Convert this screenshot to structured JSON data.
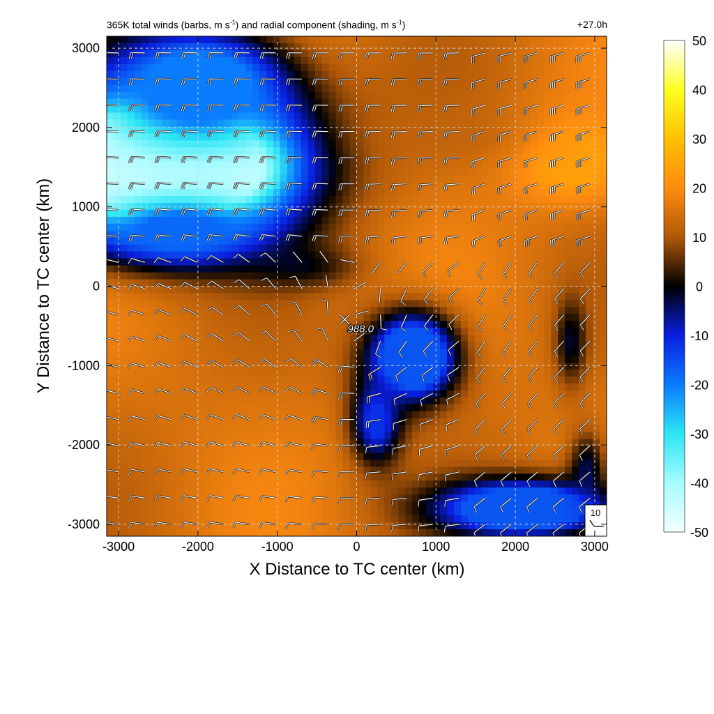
{
  "figure": {
    "title_part1": "365K total winds (barbs, m s",
    "title_sup1": "-1",
    "title_part2": ") and radial component (shading, m s",
    "title_sup2": "-1",
    "title_part3": ")",
    "time_label": "+27.0h"
  },
  "chart_data": {
    "type": "heatmap",
    "xlabel": "X Distance to TC center (km)",
    "ylabel": "Y Distance to TC center (km)",
    "xlim": [
      -3150,
      3150
    ],
    "ylim": [
      -3150,
      3150
    ],
    "xticks": [
      -3000,
      -2000,
      -1000,
      0,
      1000,
      2000,
      3000
    ],
    "yticks": [
      -3000,
      -2000,
      -1000,
      0,
      1000,
      2000,
      3000
    ],
    "grid": true,
    "colorbar": {
      "min": -50,
      "max": 50,
      "ticks": [
        50,
        40,
        30,
        20,
        10,
        0,
        -10,
        -20,
        -30,
        -40,
        -50
      ],
      "stops": [
        {
          "v": -50,
          "color": "#f4ffff"
        },
        {
          "v": -40,
          "color": "#a6fbff"
        },
        {
          "v": -30,
          "color": "#2ce6f4"
        },
        {
          "v": -20,
          "color": "#0a7cff"
        },
        {
          "v": -10,
          "color": "#0a1ee0"
        },
        {
          "v": 0,
          "color": "#000000"
        },
        {
          "v": 10,
          "color": "#b05808"
        },
        {
          "v": 20,
          "color": "#ff8c10"
        },
        {
          "v": 30,
          "color": "#ffc000"
        },
        {
          "v": 40,
          "color": "#ffff20"
        },
        {
          "v": 50,
          "color": "#ffffff"
        }
      ]
    },
    "center_marker": {
      "x": -150,
      "y": -420,
      "label": "988.0"
    },
    "reference_barb": {
      "label": "10"
    },
    "shading_features": [
      {
        "x": -2400,
        "y": 1550,
        "rx": 1900,
        "ry": 1100,
        "value": -46,
        "w": 1.2
      },
      {
        "x": -2000,
        "y": 2500,
        "rx": 1400,
        "ry": 900,
        "value": -20,
        "w": 0.9
      },
      {
        "x": -2200,
        "y": 700,
        "rx": 1300,
        "ry": 500,
        "value": -18,
        "w": 0.8
      },
      {
        "x": 2700,
        "y": 1600,
        "rx": 1000,
        "ry": 700,
        "value": 24,
        "w": 0.8
      },
      {
        "x": 1200,
        "y": 1900,
        "rx": 1400,
        "ry": 500,
        "value": 12,
        "w": 0.5
      },
      {
        "x": 700,
        "y": -900,
        "rx": 700,
        "ry": 700,
        "value": -16,
        "w": 1.0
      },
      {
        "x": 250,
        "y": -1700,
        "rx": 400,
        "ry": 700,
        "value": -12,
        "w": 0.7
      },
      {
        "x": 2100,
        "y": -2800,
        "rx": 1400,
        "ry": 450,
        "value": -16,
        "w": 1.0
      },
      {
        "x": 2900,
        "y": -2300,
        "rx": 300,
        "ry": 600,
        "value": -8,
        "w": 0.5
      },
      {
        "x": 2700,
        "y": -700,
        "rx": 250,
        "ry": 700,
        "value": -6,
        "w": 0.5
      },
      {
        "x": -700,
        "y": 250,
        "rx": 900,
        "ry": 350,
        "value": -6,
        "w": 0.4
      }
    ],
    "background_value": 15
  }
}
